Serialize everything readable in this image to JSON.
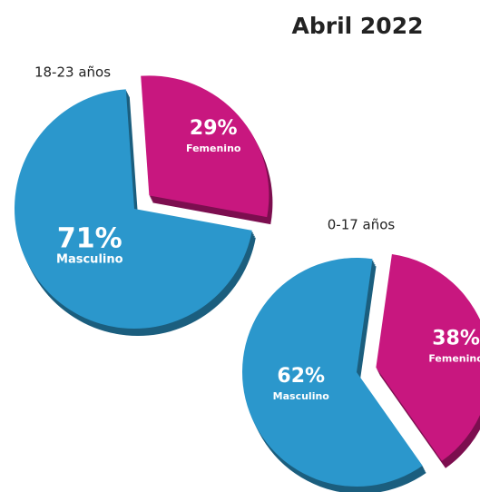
{
  "header": {
    "title": "Abril 2022"
  },
  "chart_data": [
    {
      "type": "pie",
      "title": "18-23 años",
      "categories": [
        "Masculino",
        "Femenino"
      ],
      "values": [
        71,
        29
      ],
      "value_labels": [
        "71%",
        "29%"
      ],
      "colors": [
        "#2b97cc",
        "#c8177f"
      ]
    },
    {
      "type": "pie",
      "title": "0-17 años",
      "categories": [
        "Masculino",
        "Femenino"
      ],
      "values": [
        62,
        38
      ],
      "value_labels": [
        "62%",
        "38%"
      ],
      "colors": [
        "#2b97cc",
        "#c8177f"
      ]
    }
  ]
}
